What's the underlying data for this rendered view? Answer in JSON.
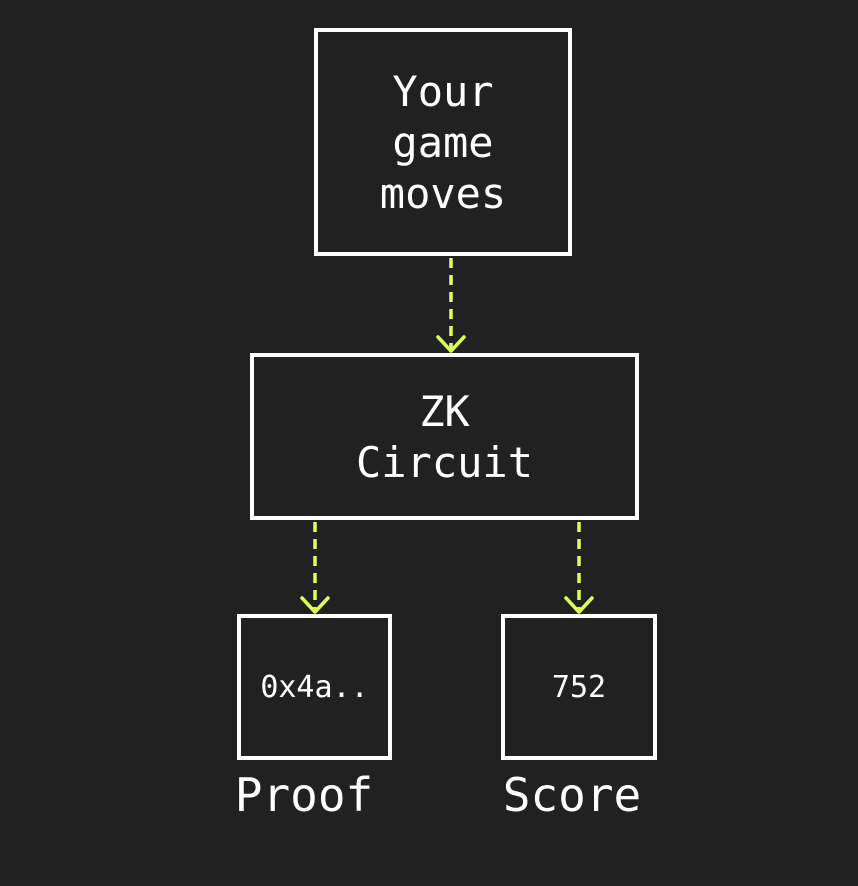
{
  "diagram": {
    "nodes": {
      "input": {
        "label": "Your\ngame\nmoves"
      },
      "circuit": {
        "label": "ZK\nCircuit"
      },
      "proof": {
        "value": "0x4a..",
        "caption": "Proof"
      },
      "score": {
        "value": "752",
        "caption": "Score"
      }
    },
    "edges": [
      {
        "from": "input",
        "to": "circuit",
        "style": "dashed"
      },
      {
        "from": "circuit",
        "to": "proof",
        "style": "dashed"
      },
      {
        "from": "circuit",
        "to": "score",
        "style": "dashed"
      }
    ],
    "colors": {
      "background": "#212121",
      "box_border": "#ffffff",
      "text": "#ffffff",
      "arrow": "#dcff5a"
    }
  }
}
